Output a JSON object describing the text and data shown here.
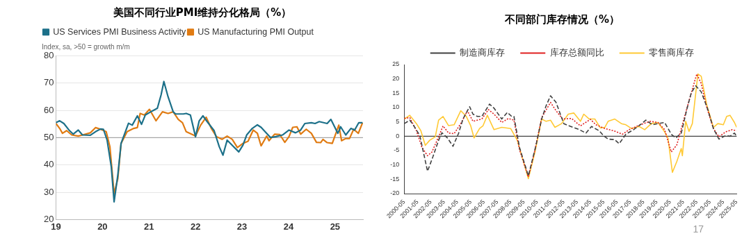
{
  "chart_data": [
    {
      "type": "line",
      "title": "美国不同行业PMI维持分化格局（%）",
      "subtitle": "Index, sa, >50 = growth m/m",
      "legend": "top left",
      "grid": "y",
      "marker": "none",
      "line_style": "solid",
      "xlim": [
        2019,
        2025.6
      ],
      "xticks": [
        {
          "value": 2019,
          "label": "19"
        },
        {
          "value": 2020,
          "label": "20"
        },
        {
          "value": 2021,
          "label": "21"
        },
        {
          "value": 2022,
          "label": "22"
        },
        {
          "value": 2023,
          "label": "23"
        },
        {
          "value": 2024,
          "label": "24"
        },
        {
          "value": 2025,
          "label": "25"
        }
      ],
      "ylim": [
        20,
        80
      ],
      "yticks": [
        20,
        30,
        40,
        50,
        60,
        70,
        80
      ],
      "ref_lines": [
        {
          "axis": "y",
          "value": 50,
          "color": "#a6a6a6"
        }
      ],
      "series": [
        {
          "name": "US Services PMI Business Activity",
          "color": "#1c7089",
          "x": [
            2019.0,
            2019.08,
            2019.17,
            2019.28,
            2019.37,
            2019.48,
            2019.57,
            2019.74,
            2019.85,
            2019.96,
            2020.02,
            2020.1,
            2020.19,
            2020.25,
            2020.33,
            2020.4,
            2020.56,
            2020.64,
            2020.75,
            2020.84,
            2020.92,
            2021.07,
            2021.18,
            2021.26,
            2021.32,
            2021.41,
            2021.52,
            2021.57,
            2021.66,
            2021.74,
            2021.8,
            2021.89,
            2022.0,
            2022.08,
            2022.16,
            2022.25,
            2022.4,
            2022.51,
            2022.59,
            2022.68,
            2022.82,
            2022.93,
            2023.02,
            2023.1,
            2023.22,
            2023.33,
            2023.41,
            2023.53,
            2023.61,
            2023.73,
            2023.87,
            2024.01,
            2024.15,
            2024.26,
            2024.35,
            2024.49,
            2024.57,
            2024.66,
            2024.83,
            2024.91,
            2025.06,
            2025.12,
            2025.23,
            2025.34,
            2025.42,
            2025.51,
            2025.59
          ],
          "values": [
            55.5,
            56.2,
            55.2,
            52.8,
            51.3,
            52.8,
            51,
            50.9,
            52.2,
            53.2,
            53.1,
            49.1,
            39.3,
            26.5,
            36.3,
            47.9,
            55.3,
            54.6,
            58,
            54.9,
            58.3,
            59.8,
            60.8,
            65.7,
            70.6,
            65,
            59.5,
            58.7,
            58.7,
            58.7,
            58.9,
            58.3,
            50.4,
            56.2,
            58,
            55.9,
            52.6,
            46.7,
            43.6,
            49.1,
            46.7,
            44.8,
            47.3,
            51,
            53.4,
            54.7,
            53.8,
            51.6,
            50.1,
            50.4,
            51,
            52.8,
            51.8,
            52.8,
            55.2,
            55.5,
            55.2,
            55.9,
            55.2,
            56.7,
            51.6,
            54,
            51,
            53.4,
            52.8,
            55.5,
            55.5
          ]
        },
        {
          "name": "US Manufacturing PMI Output",
          "color": "#e07b12",
          "x": [
            2019.0,
            2019.08,
            2019.14,
            2019.23,
            2019.34,
            2019.48,
            2019.57,
            2019.74,
            2019.85,
            2019.96,
            2020.08,
            2020.16,
            2020.25,
            2020.33,
            2020.4,
            2020.53,
            2020.67,
            2020.75,
            2020.81,
            2020.9,
            2021.01,
            2021.15,
            2021.29,
            2021.41,
            2021.52,
            2021.63,
            2021.72,
            2021.8,
            2022.0,
            2022.11,
            2022.23,
            2022.34,
            2022.45,
            2022.57,
            2022.68,
            2022.79,
            2022.9,
            2023.02,
            2023.13,
            2023.24,
            2023.33,
            2023.41,
            2023.53,
            2023.58,
            2023.7,
            2023.81,
            2023.92,
            2024.01,
            2024.09,
            2024.18,
            2024.26,
            2024.38,
            2024.49,
            2024.6,
            2024.69,
            2024.74,
            2024.83,
            2024.94,
            2025.03,
            2025.08,
            2025.14,
            2025.23,
            2025.31,
            2025.4,
            2025.5,
            2025.59
          ],
          "values": [
            55.2,
            53.4,
            51.6,
            52.6,
            51,
            50.6,
            51,
            51.8,
            53.7,
            53.1,
            52.2,
            46.7,
            29.5,
            35,
            47.9,
            52.2,
            53.4,
            53.7,
            58.9,
            58.3,
            60.4,
            56.2,
            59.5,
            58.9,
            59.5,
            56.7,
            55.5,
            52.2,
            50.6,
            54.6,
            57.5,
            53.4,
            50.4,
            49.4,
            50.6,
            49.4,
            46.4,
            47.9,
            48.7,
            52.8,
            51.6,
            47,
            50.6,
            48.9,
            51.3,
            51.2,
            48.3,
            50.4,
            53.8,
            54,
            51.3,
            53.1,
            51.6,
            48.3,
            48.2,
            49.4,
            48.2,
            47.9,
            52.2,
            54.6,
            48.9,
            49.7,
            49.7,
            53.1,
            51.6,
            55.5
          ]
        }
      ]
    },
    {
      "type": "line",
      "title": "不同部门库存情况（%）",
      "legend": "top",
      "grid": false,
      "marker": "none",
      "xlim": [
        "2000-05",
        "2025-05"
      ],
      "xticks": [
        "2000-05",
        "2001-05",
        "2002-05",
        "2003-05",
        "2004-05",
        "2005-05",
        "2006-05",
        "2007-05",
        "2008-05",
        "2009-05",
        "2010-05",
        "2011-05",
        "2012-05",
        "2013-05",
        "2014-05",
        "2015-05",
        "2016-05",
        "2017-05",
        "2018-05",
        "2019-05",
        "2020-05",
        "2021-05",
        "2022-05",
        "2023-05",
        "2024-05",
        "2025-05"
      ],
      "ylim": [
        -20,
        25
      ],
      "yticks": [
        -20,
        -15,
        -10,
        -5,
        0,
        5,
        10,
        15,
        20,
        25
      ],
      "ref_lines": [
        {
          "axis": "y",
          "value": 0,
          "color": "#404040"
        }
      ],
      "annotations": [
        "17"
      ],
      "series": [
        {
          "name": "制造商库存",
          "color": "#404040",
          "line_style": "dashed",
          "x": [
            "2000-05",
            "2000-10",
            "2001-01",
            "2001-07",
            "2002-02",
            "2002-07",
            "2002-12",
            "2003-03",
            "2003-08",
            "2004-01",
            "2004-06",
            "2004-10",
            "2005-04",
            "2005-07",
            "2005-11",
            "2006-03",
            "2006-10",
            "2007-02",
            "2007-09",
            "2008-02",
            "2008-06",
            "2008-08",
            "2009-01",
            "2009-09",
            "2010-04",
            "2010-09",
            "2011-01",
            "2011-05",
            "2011-10",
            "2012-05",
            "2012-10",
            "2013-07",
            "2014-01",
            "2014-06",
            "2015-01",
            "2015-05",
            "2015-09",
            "2016-03",
            "2016-07",
            "2017-01",
            "2017-08",
            "2018-02",
            "2018-07",
            "2019-01",
            "2019-06",
            "2019-12",
            "2020-06",
            "2020-10",
            "2021-03",
            "2021-08",
            "2021-12",
            "2022-04",
            "2022-09",
            "2023-03",
            "2023-08",
            "2024-01",
            "2024-07",
            "2024-11",
            "2025-03",
            "2025-05"
          ],
          "values": [
            4.4,
            5.6,
            4,
            0.3,
            -12.2,
            -7,
            -1.4,
            1.2,
            -0.6,
            -3.5,
            1,
            6,
            10.3,
            7.7,
            6.9,
            6.9,
            11.2,
            9.8,
            6,
            8.3,
            6.9,
            6.9,
            -3.9,
            -13.8,
            -3,
            6,
            10.6,
            14.1,
            11.8,
            4.4,
            3.6,
            2.3,
            1.1,
            3.4,
            1.9,
            0.1,
            -1,
            -1.2,
            -2.6,
            0.7,
            2.3,
            4,
            5.6,
            4,
            4.4,
            4.8,
            0.7,
            -0.6,
            1.1,
            9.3,
            15.1,
            17.6,
            15.5,
            9.3,
            2.7,
            -1,
            0.2,
            0,
            1.1,
            0
          ]
        },
        {
          "name": "库存总额同比",
          "color": "#e02020",
          "line_style": "dotted",
          "x": [
            "2000-05",
            "2000-10",
            "2001-04",
            "2001-09",
            "2002-02",
            "2002-06",
            "2002-12",
            "2003-04",
            "2003-09",
            "2004-02",
            "2004-08",
            "2005-02",
            "2005-07",
            "2006-03",
            "2006-09",
            "2007-02",
            "2007-09",
            "2008-03",
            "2008-08",
            "2009-01",
            "2009-09",
            "2010-03",
            "2010-09",
            "2011-05",
            "2011-10",
            "2012-04",
            "2012-12",
            "2013-08",
            "2014-05",
            "2014-10",
            "2015-06",
            "2016-02",
            "2016-10",
            "2017-04",
            "2018-02",
            "2018-11",
            "2019-06",
            "2019-12",
            "2020-06",
            "2020-11",
            "2021-04",
            "2021-09",
            "2022-05",
            "2022-09",
            "2023-02",
            "2023-08",
            "2024-01",
            "2024-07",
            "2025-01",
            "2025-05"
          ],
          "values": [
            6.2,
            6.5,
            1.9,
            -3.9,
            -6.8,
            -5.5,
            -0.2,
            3.6,
            1.1,
            0.9,
            4.4,
            8.9,
            5.2,
            6,
            9.3,
            7.7,
            4.8,
            6.2,
            5.6,
            -4.7,
            -14.2,
            -4.7,
            6.5,
            11.8,
            8.9,
            6,
            6.2,
            3.6,
            5.9,
            4,
            2.7,
            1.9,
            0.7,
            2.3,
            4,
            5.2,
            4.8,
            2.3,
            -5.5,
            -3,
            4,
            11,
            21.7,
            18.4,
            10.1,
            2.7,
            -0.2,
            1.5,
            2.3,
            1.9
          ]
        },
        {
          "name": "零售商库存",
          "color": "#ffc934",
          "line_style": "solid",
          "x": [
            "2000-05",
            "2000-10",
            "2001-04",
            "2001-08",
            "2001-12",
            "2002-04",
            "2002-09",
            "2002-12",
            "2003-04",
            "2003-09",
            "2004-02",
            "2004-08",
            "2005-01",
            "2005-05",
            "2005-08",
            "2006-01",
            "2006-04",
            "2006-08",
            "2007-02",
            "2007-09",
            "2008-05",
            "2008-11",
            "2009-09",
            "2010-03",
            "2010-09",
            "2011-01",
            "2011-05",
            "2011-09",
            "2012-03",
            "2012-09",
            "2013-02",
            "2013-08",
            "2013-11",
            "2014-04",
            "2014-09",
            "2015-02",
            "2015-06",
            "2015-09",
            "2016-03",
            "2016-09",
            "2017-01",
            "2017-06",
            "2018-01",
            "2018-06",
            "2018-12",
            "2019-06",
            "2019-12",
            "2020-03",
            "2020-07",
            "2020-11",
            "2021-03",
            "2021-04",
            "2021-07",
            "2021-10",
            "2022-01",
            "2022-06",
            "2022-09",
            "2023-02",
            "2023-08",
            "2023-12",
            "2024-05",
            "2024-08",
            "2024-11",
            "2025-03",
            "2025-05"
          ],
          "values": [
            6,
            7.3,
            4.4,
            1.9,
            -3.2,
            -1.4,
            -0.2,
            5.6,
            6.9,
            3.7,
            4,
            8.9,
            6.9,
            3.6,
            -0.6,
            2.7,
            3.6,
            7.3,
            2.3,
            3.1,
            2.7,
            -1.4,
            -14.8,
            -5.5,
            6,
            5.2,
            5.6,
            3.1,
            4.4,
            7.7,
            8.1,
            5.2,
            7.7,
            6,
            6,
            2.9,
            3.1,
            5.2,
            6,
            4.4,
            4,
            2.7,
            3.4,
            2.3,
            4.4,
            4.8,
            1.5,
            -0.6,
            -12.6,
            -8.8,
            -4.3,
            -6.8,
            5.2,
            1.7,
            4.4,
            21.7,
            20.9,
            11,
            3.1,
            4.4,
            4,
            6.9,
            7.3,
            4.8,
            3.1
          ]
        }
      ]
    }
  ]
}
